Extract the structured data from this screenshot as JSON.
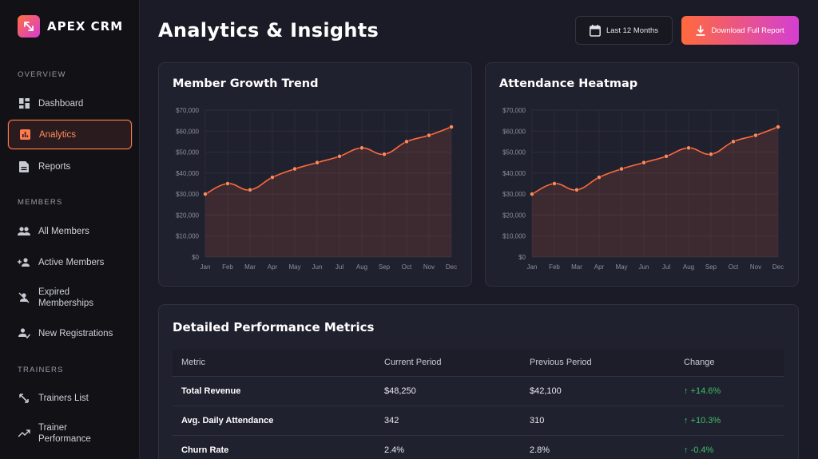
{
  "brand": {
    "name": "APEX CRM"
  },
  "sidebar": {
    "sections": [
      {
        "label": "OVERVIEW",
        "items": [
          {
            "label": "Dashboard",
            "icon": "dashboard-icon"
          },
          {
            "label": "Analytics",
            "icon": "analytics-icon",
            "active": true
          },
          {
            "label": "Reports",
            "icon": "reports-icon"
          }
        ]
      },
      {
        "label": "MEMBERS",
        "items": [
          {
            "label": "All Members",
            "icon": "members-icon"
          },
          {
            "label": "Active Members",
            "icon": "add-person-icon"
          },
          {
            "label_line1": "Expired",
            "label_line2": "Memberships",
            "icon": "person-off-icon"
          },
          {
            "label": "New Registrations",
            "icon": "person-check-icon"
          }
        ]
      },
      {
        "label": "TRAINERS",
        "items": [
          {
            "label": "Trainers List",
            "icon": "trainers-icon"
          },
          {
            "label_line1": "Trainer",
            "label_line2": "Performance",
            "icon": "trending-icon"
          }
        ]
      }
    ]
  },
  "header": {
    "title": "Analytics & Insights",
    "range_label": "Last 12 Months",
    "download_label": "Download Full Report"
  },
  "colors": {
    "accent": "#ff6a3d",
    "accent_end": "#d43fd2",
    "positive": "#3fbf6a"
  },
  "chart_data": [
    {
      "type": "area",
      "title": "Member Growth Trend",
      "categories": [
        "Jan",
        "Feb",
        "Mar",
        "Apr",
        "May",
        "Jun",
        "Jul",
        "Aug",
        "Sep",
        "Oct",
        "Nov",
        "Dec"
      ],
      "values": [
        30000,
        35000,
        32000,
        38000,
        42000,
        45000,
        48000,
        52000,
        49000,
        55000,
        58000,
        62000
      ],
      "ylim": [
        0,
        70000
      ],
      "yticks": [
        "$0",
        "$10,000",
        "$20,000",
        "$30,000",
        "$40,000",
        "$50,000",
        "$60,000",
        "$70,000"
      ],
      "grid": true,
      "color": "#ff6a3d"
    },
    {
      "type": "area",
      "title": "Attendance Heatmap",
      "categories": [
        "Jan",
        "Feb",
        "Mar",
        "Apr",
        "May",
        "Jun",
        "Jul",
        "Aug",
        "Sep",
        "Oct",
        "Nov",
        "Dec"
      ],
      "values": [
        30000,
        35000,
        32000,
        38000,
        42000,
        45000,
        48000,
        52000,
        49000,
        55000,
        58000,
        62000
      ],
      "ylim": [
        0,
        70000
      ],
      "yticks": [
        "$0",
        "$10,000",
        "$20,000",
        "$30,000",
        "$40,000",
        "$50,000",
        "$60,000",
        "$70,000"
      ],
      "grid": true,
      "color": "#ff6a3d"
    }
  ],
  "metrics": {
    "title": "Detailed Performance Metrics",
    "headers": [
      "Metric",
      "Current Period",
      "Previous Period",
      "Change"
    ],
    "rows": [
      {
        "metric": "Total Revenue",
        "current": "$48,250",
        "previous": "$42,100",
        "change": "↑ +14.6%"
      },
      {
        "metric": "Avg. Daily Attendance",
        "current": "342",
        "previous": "310",
        "change": "↑ +10.3%"
      },
      {
        "metric": "Churn Rate",
        "current": "2.4%",
        "previous": "2.8%",
        "change": "↑ -0.4%"
      }
    ]
  }
}
